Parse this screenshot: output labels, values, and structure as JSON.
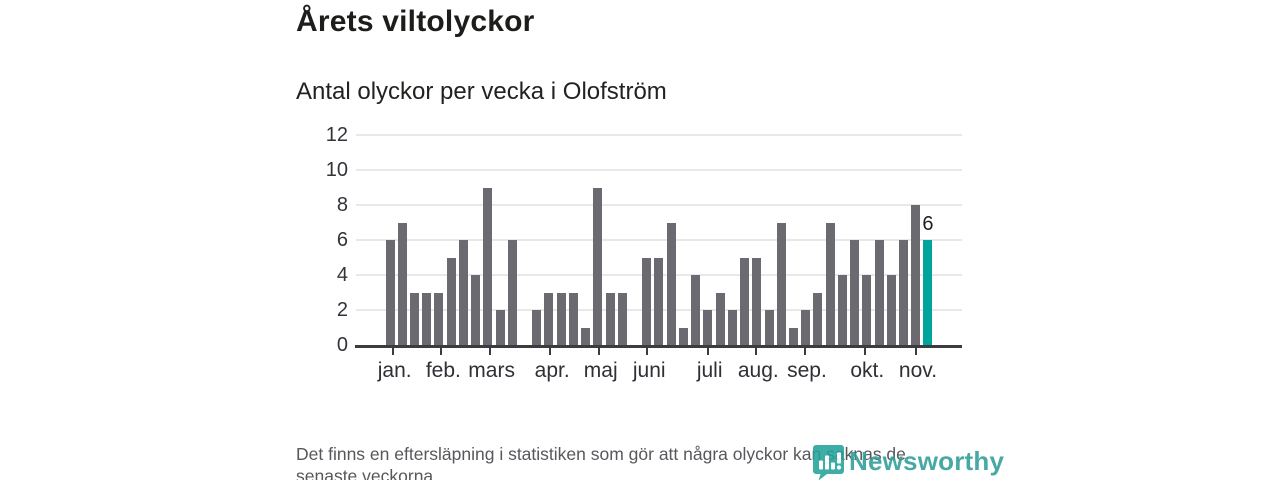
{
  "header": {
    "title": "Årets viltolyckor",
    "subtitle": "Antal olyckor per vecka i Olofström"
  },
  "chart_data": {
    "type": "bar",
    "title": "Årets viltolyckor",
    "subtitle": "Antal olyckor per vecka i Olofström",
    "xlabel": "",
    "ylabel": "",
    "ylim": [
      0,
      12
    ],
    "yticks": [
      0,
      2,
      4,
      6,
      8,
      10,
      12
    ],
    "grid": true,
    "legend": "none",
    "categories_unit": "vecka",
    "values": [
      6,
      7,
      3,
      3,
      3,
      5,
      6,
      4,
      9,
      2,
      6,
      0,
      2,
      3,
      3,
      3,
      1,
      9,
      3,
      3,
      0,
      5,
      5,
      7,
      1,
      4,
      2,
      3,
      2,
      5,
      5,
      2,
      7,
      1,
      2,
      3,
      7,
      4,
      6,
      4,
      6,
      4,
      6,
      8,
      6
    ],
    "highlight_index": 44,
    "highlight_label": "6",
    "bar_color": "#6a6a70",
    "highlight_color": "#00a49d",
    "month_ticks": [
      {
        "label": "jan.",
        "week": 1.22
      },
      {
        "label": "feb.",
        "week": 5.2
      },
      {
        "label": "mars",
        "week": 9.15
      },
      {
        "label": "apr.",
        "week": 14.1
      },
      {
        "label": "maj",
        "week": 18.07
      },
      {
        "label": "juni",
        "week": 22.04
      },
      {
        "label": "juli",
        "week": 26.98
      },
      {
        "label": "aug.",
        "week": 30.96
      },
      {
        "label": "sep.",
        "week": 34.94
      },
      {
        "label": "okt.",
        "week": 39.87
      },
      {
        "label": "nov.",
        "week": 44.02
      }
    ]
  },
  "footer": {
    "line1": "Det finns en eftersläpning i statistiken som gör att några olyckor kan saknas de",
    "line2": "senaste veckorna."
  },
  "branding": {
    "name": "Newsworthy",
    "icon_color": "#23a29a",
    "text_color": "#2f9e98"
  }
}
